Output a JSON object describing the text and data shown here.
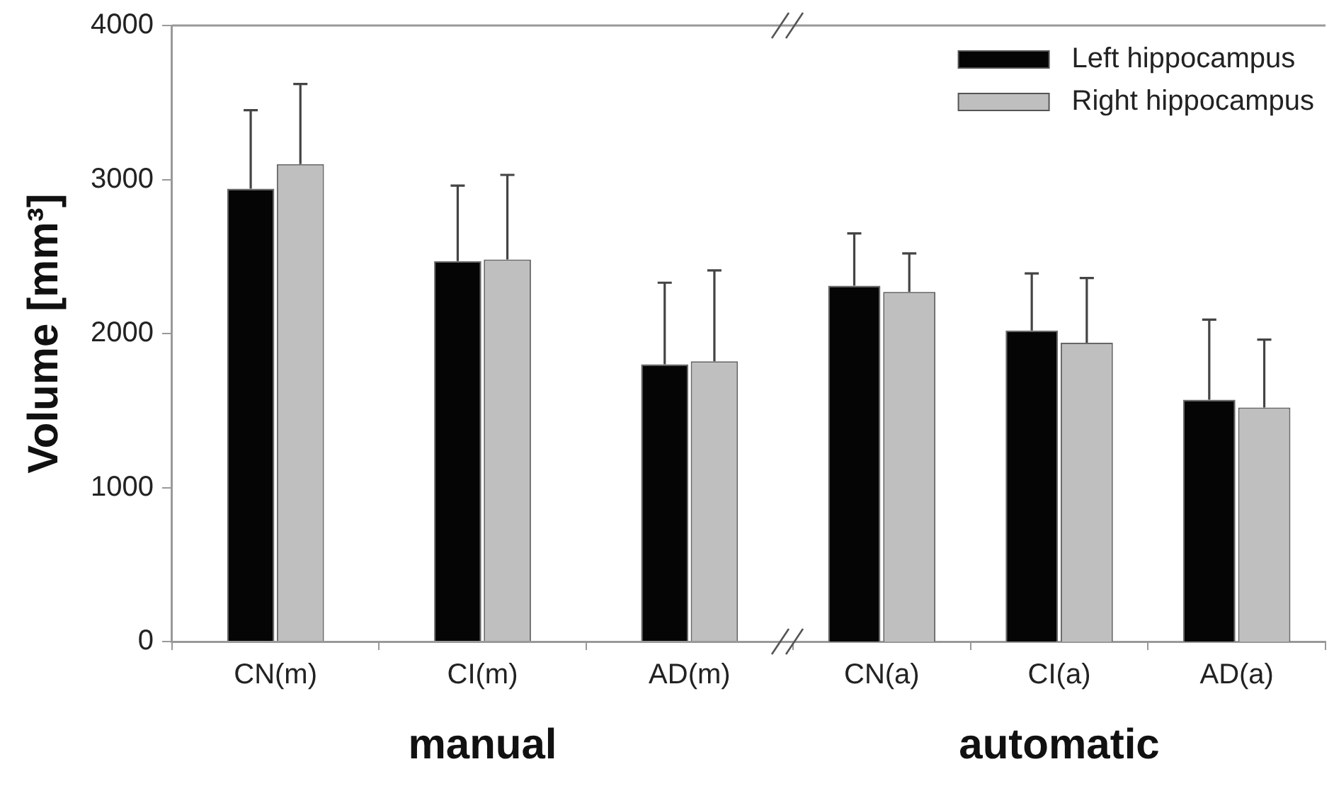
{
  "chart_data": [
    {
      "type": "bar",
      "xlabel": "manual",
      "ylabel": "Volume [mm³]",
      "categories": [
        "CN(m)",
        "CI(m)",
        "AD(m)"
      ],
      "ylim": [
        0,
        4000
      ],
      "yticks": [
        0,
        1000,
        2000,
        3000,
        4000
      ],
      "grid": false,
      "legend": false,
      "series": [
        {
          "color": "#050505",
          "values": [
            2940,
            2470,
            1800
          ],
          "errors": [
            510,
            490,
            530
          ]
        },
        {
          "color": "#bfbfbf",
          "values": [
            3100,
            2480,
            1820
          ],
          "errors": [
            520,
            550,
            590
          ]
        }
      ]
    },
    {
      "type": "bar",
      "xlabel": "automatic",
      "categories": [
        "CN(a)",
        "CI(a)",
        "AD(a)"
      ],
      "ylim": [
        0,
        4000
      ],
      "yticks": [
        0,
        1000,
        2000,
        3000,
        4000
      ],
      "tick_labels": "x",
      "grid": false,
      "legend": "top right",
      "series": [
        {
          "name": "Left hippocampus",
          "color": "#050505",
          "values": [
            2310,
            2020,
            1570
          ],
          "errors": [
            340,
            370,
            520
          ]
        },
        {
          "name": "Right hippocampus",
          "color": "#bfbfbf",
          "values": [
            2270,
            1940,
            1520
          ],
          "errors": [
            250,
            420,
            440
          ]
        }
      ]
    }
  ]
}
